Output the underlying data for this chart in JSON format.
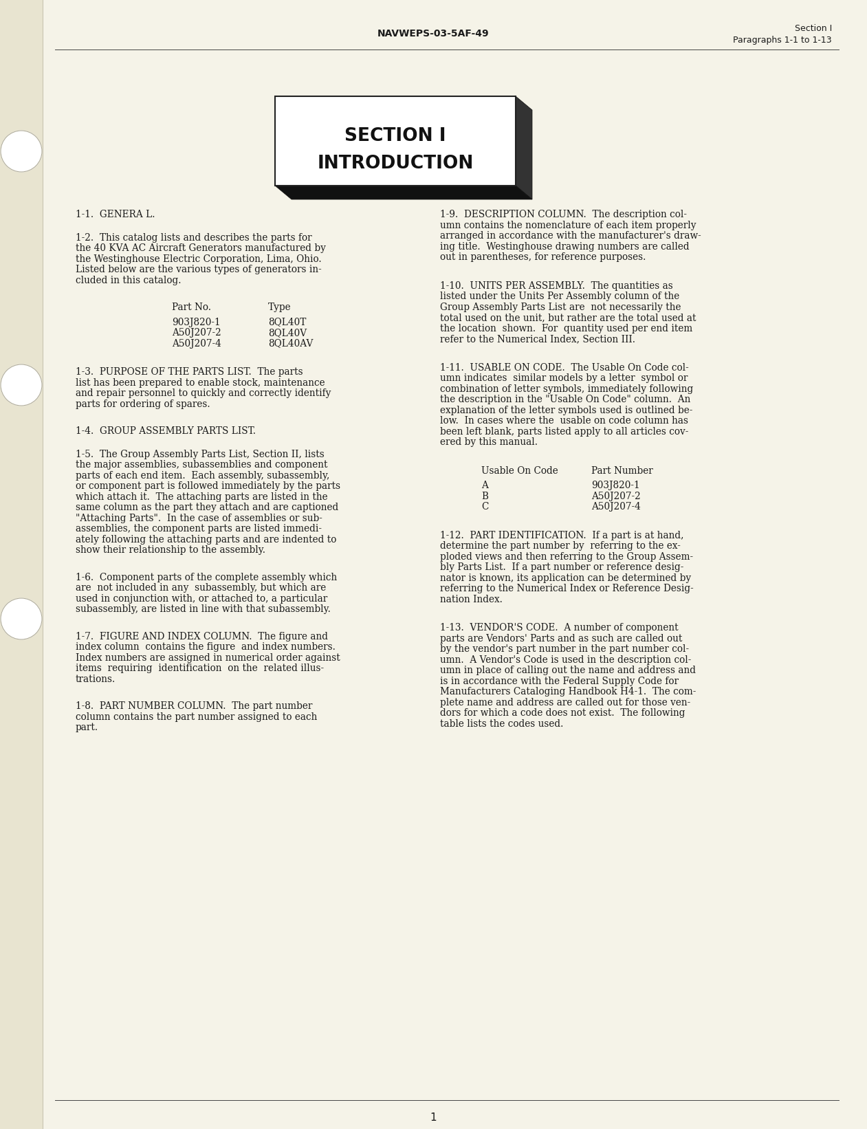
{
  "bg_color": "#f5f3e8",
  "binding_color": "#e8e4d0",
  "header_center": "NAVWEPS-03-5AF-49",
  "header_right_line1": "Section I",
  "header_right_line2": "Paragraphs 1-1 to 1-13",
  "section_title_line1": "SECTION I",
  "section_title_line2": "INTRODUCTION",
  "footer_page": "1",
  "left_col": {
    "para_1_1_head": "1-1.  GENERA L.",
    "para_1_2": "1-2.  This catalog lists and describes the parts for\nthe 40 KVA AC Aircraft Generators manufactured by\nthe Westinghouse Electric Corporation, Lima, Ohio.\nListed below are the various types of generators in-\ncluded in this catalog.",
    "table_col1_header": "Part No.",
    "table_col2_header": "Type",
    "table_rows": [
      [
        "903J820-1",
        "8QL40T"
      ],
      [
        "A50J207-2",
        "8QL40V"
      ],
      [
        "A50J207-4",
        "8QL40AV"
      ]
    ],
    "para_1_3": "1-3.  PURPOSE OF THE PARTS LIST.  The parts\nlist has been prepared to enable stock, maintenance\nand repair personnel to quickly and correctly identify\nparts for ordering of spares.",
    "para_1_4_head": "1-4.  GROUP ASSEMBLY PARTS LIST.",
    "para_1_5": "1-5.  The Group Assembly Parts List, Section II, lists\nthe major assemblies, subassemblies and component\nparts of each end item.  Each assembly, subassembly,\nor component part is followed immediately by the parts\nwhich attach it.  The attaching parts are listed in the\nsame column as the part they attach and are captioned\n\"Attaching Parts\".  In the case of assemblies or sub-\nassemblies, the component parts are listed immedi-\nately following the attaching parts and are indented to\nshow their relationship to the assembly.",
    "para_1_6": "1-6.  Component parts of the complete assembly which\nare  not included in any  subassembly, but which are\nused in conjunction with, or attached to, a particular\nsubassembly, are listed in line with that subassembly.",
    "para_1_7": "1-7.  FIGURE AND INDEX COLUMN.  The figure and\nindex column  contains the figure  and index numbers.\nIndex numbers are assigned in numerical order against\nitems  requiring  identification  on the  related illus-\ntrations.",
    "para_1_8": "1-8.  PART NUMBER COLUMN.  The part number\ncolumn contains the part number assigned to each\npart."
  },
  "right_col": {
    "para_1_9": "1-9.  DESCRIPTION COLUMN.  The description col-\numn contains the nomenclature of each item properly\narranged in accordance with the manufacturer's draw-\ning title.  Westinghouse drawing numbers are called\nout in parentheses, for reference purposes.",
    "para_1_10": "1-10.  UNITS PER ASSEMBLY.  The quantities as\nlisted under the Units Per Assembly column of the\nGroup Assembly Parts List are  not necessarily the\ntotal used on the unit, but rather are the total used at\nthe location  shown.  For  quantity used per end item\nrefer to the Numerical Index, Section III.",
    "para_1_11": "1-11.  USABLE ON CODE.  The Usable On Code col-\numn indicates  similar models by a letter  symbol or\ncombination of letter symbols, immediately following\nthe description in the \"Usable On Code\" column.  An\nexplanation of the letter symbols used is outlined be-\nlow.  In cases where the  usable on code column has\nbeen left blank, parts listed apply to all articles cov-\nered by this manual.",
    "table2_col1_header": "Usable On Code",
    "table2_col2_header": "Part Number",
    "table2_rows": [
      [
        "A",
        "903J820-1"
      ],
      [
        "B",
        "A50J207-2"
      ],
      [
        "C",
        "A50J207-4"
      ]
    ],
    "para_1_12": "1-12.  PART IDENTIFICATION.  If a part is at hand,\ndetermine the part number by  referring to the ex-\nploded views and then referring to the Group Assem-\nbly Parts List.  If a part number or reference desig-\nnator is known, its application can be determined by\nreferring to the Numerical Index or Reference Desig-\nnation Index.",
    "para_1_13": "1-13.  VENDOR'S CODE.  A number of component\nparts are Vendors' Parts and as such are called out\nby the vendor's part number in the part number col-\numn.  A Vendor's Code is used in the description col-\numn in place of calling out the name and address and\nis in accordance with the Federal Supply Code for\nManufacturers Cataloging Handbook H4-1.  The com-\nplete name and address are called out for those ven-\ndors for which a code does not exist.  The following\ntable lists the codes used."
  }
}
